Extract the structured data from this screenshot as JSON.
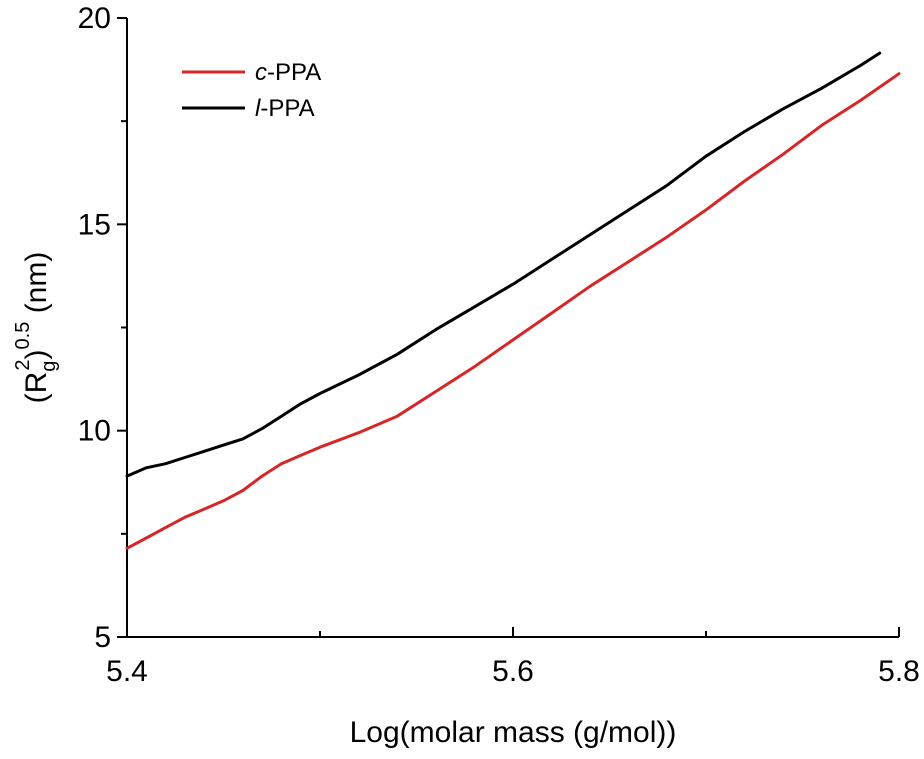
{
  "chart_data": {
    "type": "line",
    "xlabel": "Log(molar mass (g/mol))",
    "ylabel": {
      "prefix": "(R",
      "sub": "g",
      "sup": "2",
      "close": ")",
      "sup2": "0.5",
      "unit": " (nm)"
    },
    "xlim": [
      5.4,
      5.8
    ],
    "ylim": [
      5,
      20
    ],
    "xticks": [
      5.4,
      5.6,
      5.8
    ],
    "xtick_labels": [
      "5.4",
      "5.6",
      "5.8"
    ],
    "xminor": [
      5.5,
      5.7
    ],
    "yticks": [
      5,
      10,
      15,
      20
    ],
    "ytick_labels": [
      "5",
      "10",
      "15",
      "20"
    ],
    "yminor": [
      7.5,
      12.5,
      17.5
    ],
    "grid": false,
    "legend_position": "top-left",
    "series": [
      {
        "name": "c-PPA",
        "legend_italic": "c",
        "legend_rest": "-PPA",
        "color": "#d62728",
        "points": [
          [
            5.4,
            7.15
          ],
          [
            5.41,
            7.4
          ],
          [
            5.42,
            7.65
          ],
          [
            5.43,
            7.9
          ],
          [
            5.44,
            8.1
          ],
          [
            5.45,
            8.3
          ],
          [
            5.46,
            8.55
          ],
          [
            5.47,
            8.9
          ],
          [
            5.48,
            9.2
          ],
          [
            5.49,
            9.4
          ],
          [
            5.5,
            9.6
          ],
          [
            5.52,
            9.95
          ],
          [
            5.54,
            10.35
          ],
          [
            5.56,
            10.95
          ],
          [
            5.58,
            11.55
          ],
          [
            5.6,
            12.2
          ],
          [
            5.62,
            12.85
          ],
          [
            5.64,
            13.5
          ],
          [
            5.66,
            14.1
          ],
          [
            5.68,
            14.7
          ],
          [
            5.7,
            15.35
          ],
          [
            5.72,
            16.05
          ],
          [
            5.74,
            16.7
          ],
          [
            5.76,
            17.4
          ],
          [
            5.78,
            18.0
          ],
          [
            5.8,
            18.65
          ]
        ]
      },
      {
        "name": "l-PPA",
        "legend_italic": "l",
        "legend_rest": "-PPA",
        "color": "#000000",
        "points": [
          [
            5.4,
            8.9
          ],
          [
            5.41,
            9.1
          ],
          [
            5.42,
            9.2
          ],
          [
            5.43,
            9.35
          ],
          [
            5.44,
            9.5
          ],
          [
            5.45,
            9.65
          ],
          [
            5.46,
            9.8
          ],
          [
            5.47,
            10.05
          ],
          [
            5.48,
            10.35
          ],
          [
            5.49,
            10.65
          ],
          [
            5.5,
            10.9
          ],
          [
            5.52,
            11.35
          ],
          [
            5.54,
            11.85
          ],
          [
            5.56,
            12.45
          ],
          [
            5.58,
            13.0
          ],
          [
            5.6,
            13.55
          ],
          [
            5.62,
            14.15
          ],
          [
            5.64,
            14.75
          ],
          [
            5.66,
            15.35
          ],
          [
            5.68,
            15.95
          ],
          [
            5.7,
            16.65
          ],
          [
            5.72,
            17.25
          ],
          [
            5.74,
            17.8
          ],
          [
            5.76,
            18.3
          ],
          [
            5.78,
            18.85
          ],
          [
            5.79,
            19.15
          ]
        ]
      }
    ]
  }
}
